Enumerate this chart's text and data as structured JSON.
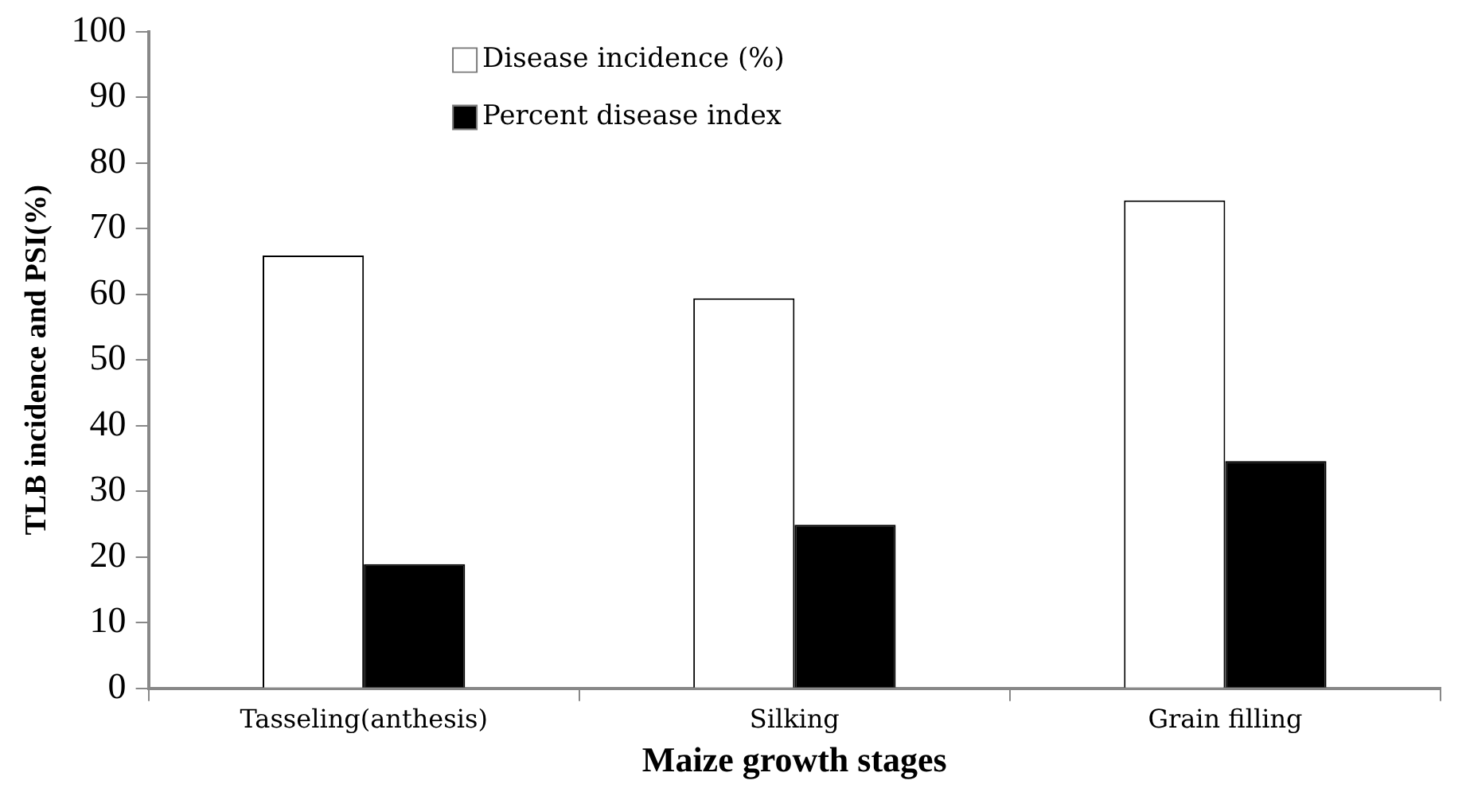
{
  "chart_data": {
    "type": "bar",
    "xlabel": "Maize growth stages",
    "ylabel": "TLB incidence and PSI(%)",
    "categories": [
      "Tasseling(anthesis)",
      "Silking",
      "Grain filling"
    ],
    "series": [
      {
        "name": "Disease incidence (%)",
        "color": "#ffffff",
        "values": [
          65.9,
          59.4,
          74.3
        ]
      },
      {
        "name": "Percent disease index",
        "color": "#000000",
        "values": [
          18.9,
          24.9,
          34.6
        ]
      }
    ],
    "ylim": [
      0,
      100
    ],
    "yticks": [
      0,
      10,
      20,
      30,
      40,
      50,
      60,
      70,
      80,
      90,
      100
    ],
    "grid": false,
    "legend": "top"
  }
}
